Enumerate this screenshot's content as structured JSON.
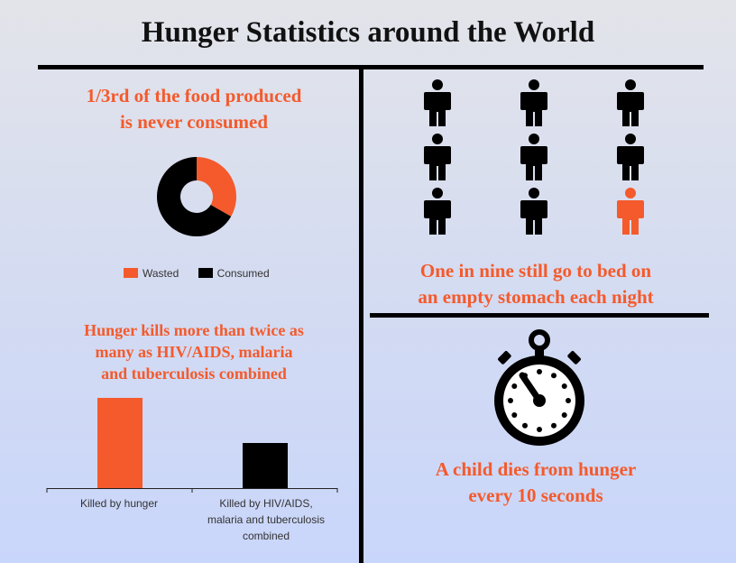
{
  "title": "Hunger Statistics around the World",
  "colors": {
    "accent": "#f45a2c",
    "dark": "#000000"
  },
  "panel_food": {
    "heading_line1": "1/3rd of the food produced",
    "heading_line2": "is never consumed"
  },
  "panel_people": {
    "caption_line1": "One in nine still go to bed on",
    "caption_line2": "an empty stomach each night",
    "total": 9,
    "highlighted": 1,
    "icon": "person-icon"
  },
  "panel_bar": {
    "heading_line1": "Hunger kills more than twice as",
    "heading_line2": "many as HIV/AIDS, malaria",
    "heading_line3": "and tuberculosis combined"
  },
  "panel_timer": {
    "caption_line1": "A child dies from hunger",
    "caption_line2": "every 10 seconds",
    "icon": "stopwatch-icon"
  },
  "chart_data": [
    {
      "type": "pie",
      "variant": "donut",
      "categories": [
        "Wasted",
        "Consumed"
      ],
      "values": [
        33.3,
        66.7
      ],
      "colors": [
        "#f45a2c",
        "#000000"
      ],
      "legend": "bottom",
      "title": "1/3rd of the food produced is never consumed"
    },
    {
      "type": "bar",
      "categories": [
        "Killed by hunger",
        "Killed by HIV/AIDS, malaria and tuberculosis combined"
      ],
      "category_lines": [
        [
          "Killed by hunger"
        ],
        [
          "Killed by HIV/AIDS,",
          "malaria and tuberculosis",
          "combined"
        ]
      ],
      "values": [
        2,
        1
      ],
      "colors": [
        "#f45a2c",
        "#000000"
      ],
      "ylim": [
        0,
        2
      ],
      "title": "Hunger kills more than twice as many as HIV/AIDS, malaria and tuberculosis combined",
      "xlabel": "",
      "ylabel": ""
    }
  ]
}
